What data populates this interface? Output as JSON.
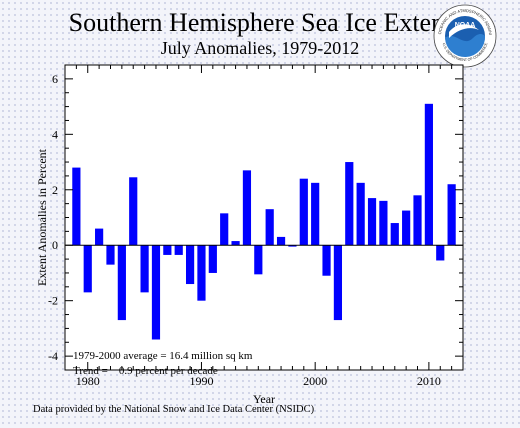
{
  "header": {
    "title": "Southern Hemisphere Sea Ice Extent",
    "subtitle": "July Anomalies, 1979-2012"
  },
  "logo": {
    "text": "NOAA",
    "ring_text_top": "NATIONAL OCEANIC AND ATMOSPHERIC ADMINISTRATION",
    "ring_text_bottom": "U.S. DEPARTMENT OF COMMERCE"
  },
  "footer": {
    "credit": "Data provided by the National Snow and Ice Data Center (NSIDC)"
  },
  "colors": {
    "bar": "#0000ff",
    "axis": "#000000",
    "logo_blue": "#1b5fb0",
    "logo_sea": "#2e7fd0"
  },
  "chart_data": {
    "type": "bar",
    "title": "Southern Hemisphere Sea Ice Extent",
    "subtitle": "July Anomalies, 1979-2012",
    "xlabel": "Year",
    "ylabel": "Extent Anomalies in Percent",
    "xlim": [
      1978,
      2013
    ],
    "ylim": [
      -4.5,
      6.5
    ],
    "xticks": [
      1980,
      1990,
      2000,
      2010
    ],
    "yticks": [
      -4,
      -2,
      0,
      2,
      4,
      6
    ],
    "grid": false,
    "annotations": [
      "1979-2000 average = 16.4 million sq km",
      "Trend =    0.9 percent per decade"
    ],
    "x": [
      1979,
      1980,
      1981,
      1982,
      1983,
      1984,
      1985,
      1986,
      1987,
      1988,
      1989,
      1990,
      1991,
      1992,
      1993,
      1994,
      1995,
      1996,
      1997,
      1998,
      1999,
      2000,
      2001,
      2002,
      2003,
      2004,
      2005,
      2006,
      2007,
      2008,
      2009,
      2010,
      2011,
      2012
    ],
    "values": [
      2.8,
      -1.7,
      0.6,
      -0.7,
      -2.7,
      2.45,
      -1.7,
      -3.4,
      -0.35,
      -0.35,
      -1.4,
      -2.0,
      -1.0,
      1.15,
      0.15,
      2.7,
      -1.05,
      1.3,
      0.3,
      -0.05,
      2.4,
      2.25,
      -1.1,
      -2.7,
      3.0,
      2.25,
      1.7,
      1.6,
      0.8,
      1.25,
      1.8,
      5.1,
      -0.55,
      2.2
    ]
  }
}
